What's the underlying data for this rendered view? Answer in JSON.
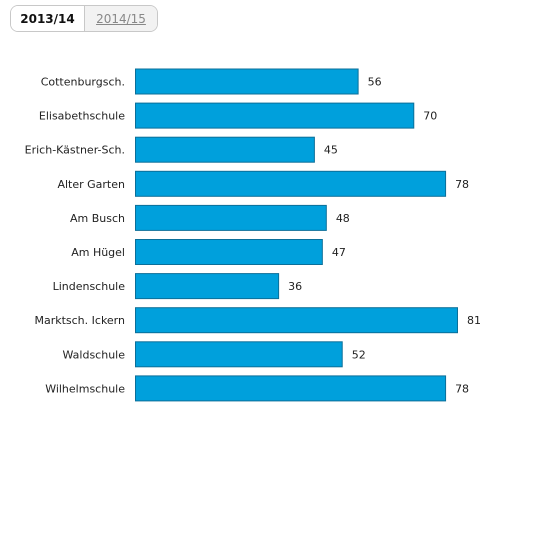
{
  "tabs": [
    {
      "label": "2013/14",
      "active": true
    },
    {
      "label": "2014/15",
      "active": false
    }
  ],
  "colors": {
    "bar": "#00a0dc",
    "bar_border": "#0b6f99"
  },
  "chart_data": {
    "type": "bar",
    "orientation": "horizontal",
    "categories": [
      "Cottenburgsch.",
      "Elisabethschule",
      "Erich-Kästner-Sch.",
      "Alter Garten",
      "Am Busch",
      "Am Hügel",
      "Lindenschule",
      "Marktsch. Ickern",
      "Waldschule",
      "Wilhelmschule"
    ],
    "values": [
      56,
      70,
      45,
      78,
      48,
      47,
      36,
      81,
      52,
      78
    ],
    "title": "",
    "xlabel": "",
    "ylabel": "",
    "xlim": [
      0,
      81
    ],
    "grid": false,
    "data_labels": true
  }
}
